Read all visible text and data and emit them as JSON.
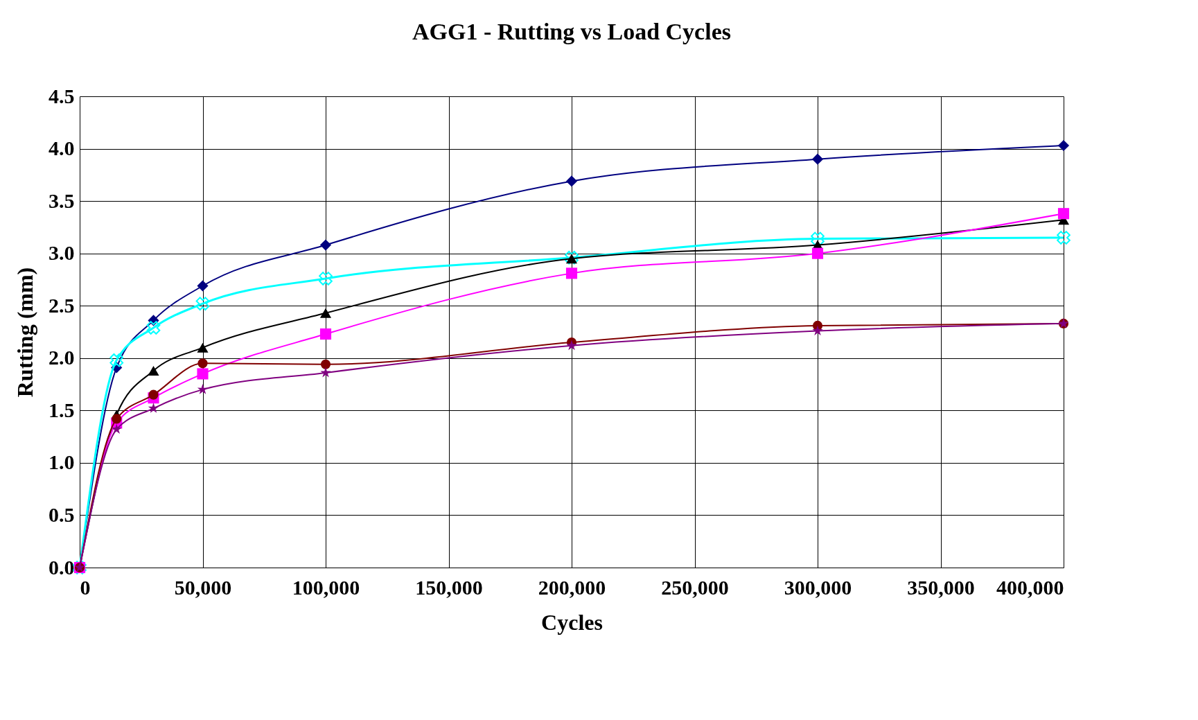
{
  "chart_data": {
    "type": "line",
    "title": "AGG1 - Rutting vs Load Cycles",
    "xlabel": "Cycles",
    "ylabel": "Rutting (mm)",
    "x": [
      0,
      15000,
      30000,
      50000,
      100000,
      200000,
      300000,
      400000
    ],
    "series": [
      {
        "color": "#000080",
        "marker": "diamond",
        "values": [
          0,
          1.91,
          2.36,
          2.69,
          3.08,
          3.69,
          3.9,
          4.03
        ]
      },
      {
        "color": "#00ffff",
        "marker": "cross",
        "values": [
          0,
          1.98,
          2.29,
          2.52,
          2.76,
          2.96,
          3.14,
          3.15
        ]
      },
      {
        "color": "#000000",
        "marker": "triangle",
        "values": [
          0,
          1.46,
          1.88,
          2.1,
          2.43,
          2.95,
          3.08,
          3.32
        ]
      },
      {
        "color": "#ff00ff",
        "marker": "square",
        "values": [
          0,
          1.38,
          1.62,
          1.85,
          2.23,
          2.81,
          3.0,
          3.38
        ]
      },
      {
        "color": "#800000",
        "marker": "circle",
        "values": [
          0,
          1.42,
          1.65,
          1.95,
          1.94,
          2.15,
          2.31,
          2.33
        ]
      },
      {
        "color": "#800080",
        "marker": "star",
        "values": [
          0,
          1.32,
          1.52,
          1.7,
          1.86,
          2.12,
          2.26,
          2.33
        ]
      }
    ],
    "xlim": [
      0,
      400000
    ],
    "xticks": [
      0,
      {
        "value": 50000,
        "label": "50,000"
      },
      {
        "value": 100000,
        "label": "100,000"
      },
      {
        "value": 150000,
        "label": "150,000"
      },
      {
        "value": 200000,
        "label": "200,000"
      },
      {
        "value": 250000,
        "label": "250,000"
      },
      {
        "value": 300000,
        "label": "300,000"
      },
      {
        "value": 350000,
        "label": "350,000"
      },
      {
        "value": 400000,
        "label": "400,000"
      }
    ],
    "ylim": [
      0,
      4.5
    ],
    "yticks": [
      {
        "value": 0,
        "label": "0.0"
      },
      0.5,
      {
        "value": 1,
        "label": "1.0"
      },
      1.5,
      {
        "value": 2,
        "label": "2.0"
      },
      2.5,
      {
        "value": 3,
        "label": "3.0"
      },
      3.5,
      {
        "value": 4,
        "label": "4.0"
      },
      4.5
    ],
    "grid": true,
    "line_style": "solid"
  }
}
